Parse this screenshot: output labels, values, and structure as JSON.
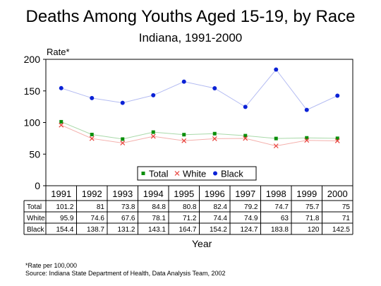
{
  "chart_data": {
    "type": "line",
    "title": "Deaths Among Youths Aged 15-19, by Race",
    "subtitle": "Indiana, 1991-2000",
    "ylabel": "Rate*",
    "xlabel": "Year",
    "ylim": [
      0,
      200
    ],
    "yticks": [
      0,
      50,
      100,
      150,
      200
    ],
    "grid": false,
    "legend_placement": "bottom-center",
    "categories": [
      "1991",
      "1992",
      "1993",
      "1994",
      "1995",
      "1996",
      "1997",
      "1998",
      "1999",
      "2000"
    ],
    "series": [
      {
        "name": "Total",
        "marker": "square",
        "color": "#0a8f0a",
        "line_color": "#a9d9a9",
        "values": [
          101.2,
          81,
          73.8,
          84.8,
          80.8,
          82.4,
          79.2,
          74.7,
          75.7,
          75
        ],
        "labels": [
          "101.2",
          "81",
          "73.8",
          "84.8",
          "80.8",
          "82.4",
          "79.2",
          "74.7",
          "75.7",
          "75"
        ]
      },
      {
        "name": "White",
        "marker": "x",
        "color": "#e8403a",
        "line_color": "#f4b0ac",
        "values": [
          95.9,
          74.6,
          67.6,
          78.1,
          71.2,
          74.4,
          74.9,
          63,
          71.8,
          71
        ],
        "labels": [
          "95.9",
          "74.6",
          "67.6",
          "78.1",
          "71.2",
          "74.4",
          "74.9",
          "63",
          "71.8",
          "71"
        ]
      },
      {
        "name": "Black",
        "marker": "circle",
        "color": "#0b22d6",
        "line_color": "#b4bcf2",
        "values": [
          154.4,
          138.7,
          131.2,
          143.1,
          164.7,
          154.2,
          124.7,
          183.8,
          120,
          142.5
        ],
        "labels": [
          "154.4",
          "138.7",
          "131.2",
          "143.1",
          "164.7",
          "154.2",
          "124.7",
          "183.8",
          "120",
          "142.5"
        ]
      }
    ]
  },
  "footnotes": {
    "rate_note": "*Rate per 100,000",
    "source": "Source:  Indiana State Department of Health, Data Analysis Team, 2002"
  }
}
